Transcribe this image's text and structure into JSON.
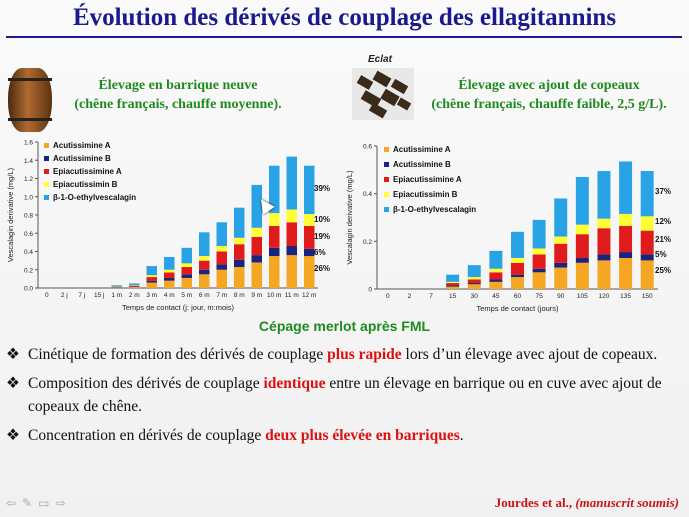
{
  "title": "Évolution des dérivés de couplage des ellagitannins",
  "left_subtitle": [
    "Élevage en barrique neuve",
    "(chêne français, chauffe moyenne)."
  ],
  "right_caption": "Eclat",
  "right_subtitle": [
    "Élevage avec ajout de copeaux",
    "(chêne français, chauffe faible, 2,5 g/L)."
  ],
  "colors": {
    "title": "#1a1a8c",
    "subtitle": "#1f8a1f",
    "highlight": "#dd1111",
    "series": [
      "#f5a623",
      "#1a237e",
      "#e01b1b",
      "#ffff33",
      "#29a3e6"
    ]
  },
  "chart_data": [
    {
      "type": "bar",
      "stacked": true,
      "xlabel": "Temps de contact (j: jour, m:mois)",
      "ylabel": "Vescalagin derivative (mg/L)",
      "ylim": [
        0,
        1.6
      ],
      "yticks": [
        "0.0",
        "0.2",
        "0.4",
        "0.6",
        "0.8",
        "1.0",
        "1.2",
        "1.4",
        "1.6"
      ],
      "categories": [
        "0",
        "2 j",
        "7 j",
        "15 j",
        "1 m",
        "2 m",
        "3 m",
        "4 m",
        "5 m",
        "6 m",
        "7 m",
        "8 m",
        "9 m",
        "10 m",
        "11 m",
        "12 m"
      ],
      "series": [
        {
          "name": "Acutissimine A",
          "values": [
            0,
            0,
            0,
            0,
            0.005,
            0.01,
            0.06,
            0.08,
            0.11,
            0.15,
            0.2,
            0.23,
            0.28,
            0.35,
            0.36,
            0.35
          ]
        },
        {
          "name": "Acutissimine B",
          "values": [
            0,
            0,
            0,
            0,
            0.002,
            0.005,
            0.02,
            0.03,
            0.04,
            0.05,
            0.06,
            0.08,
            0.08,
            0.09,
            0.1,
            0.08
          ]
        },
        {
          "name": "Epiacutissimine A",
          "values": [
            0,
            0,
            0,
            0,
            0.005,
            0.01,
            0.04,
            0.06,
            0.08,
            0.1,
            0.14,
            0.17,
            0.2,
            0.24,
            0.26,
            0.25
          ]
        },
        {
          "name": "Epiacutissimin B",
          "values": [
            0,
            0,
            0,
            0,
            0.003,
            0.005,
            0.02,
            0.03,
            0.04,
            0.05,
            0.06,
            0.07,
            0.1,
            0.14,
            0.14,
            0.13
          ]
        },
        {
          "name": "β-1-O-ethylvescalagin",
          "values": [
            0,
            0,
            0,
            0,
            0.015,
            0.02,
            0.1,
            0.14,
            0.17,
            0.26,
            0.26,
            0.33,
            0.47,
            0.52,
            0.58,
            0.53
          ]
        }
      ],
      "percent_labels": [
        "39%",
        "10%",
        "19%",
        "6%",
        "26%"
      ]
    },
    {
      "type": "bar",
      "stacked": true,
      "xlabel": "Temps de contact (jours)",
      "ylabel": "Vescalagin derivative (mg/L)",
      "ylim": [
        0,
        0.6
      ],
      "yticks": [
        "0",
        "0.2",
        "0.4",
        "0.6"
      ],
      "categories": [
        "0",
        "2",
        "7",
        "15",
        "30",
        "45",
        "60",
        "75",
        "90",
        "105",
        "120",
        "135",
        "150"
      ],
      "series": [
        {
          "name": "Acutissimine A",
          "values": [
            0,
            0,
            0,
            0.01,
            0.02,
            0.03,
            0.05,
            0.07,
            0.09,
            0.11,
            0.12,
            0.13,
            0.12
          ]
        },
        {
          "name": "Acutissimine B",
          "values": [
            0,
            0,
            0,
            0.005,
            0.005,
            0.01,
            0.01,
            0.015,
            0.02,
            0.02,
            0.025,
            0.025,
            0.025
          ]
        },
        {
          "name": "Epiacutissimine A",
          "values": [
            0,
            0,
            0,
            0.01,
            0.015,
            0.03,
            0.05,
            0.06,
            0.08,
            0.1,
            0.11,
            0.11,
            0.1
          ]
        },
        {
          "name": "Epiacutissimin B",
          "values": [
            0,
            0,
            0,
            0.005,
            0.01,
            0.015,
            0.02,
            0.025,
            0.03,
            0.04,
            0.04,
            0.05,
            0.06
          ]
        },
        {
          "name": "β-1-O-ethylvescalagin",
          "values": [
            0,
            0,
            0,
            0.03,
            0.05,
            0.075,
            0.11,
            0.12,
            0.16,
            0.2,
            0.2,
            0.22,
            0.19
          ]
        }
      ],
      "percent_labels": [
        "37%",
        "12%",
        "21%",
        "5%",
        "25%"
      ]
    }
  ],
  "merlot_label": "Cépage merlot après FML",
  "bullets": [
    {
      "before": "Cinétique de formation des dérivés de couplage ",
      "highlight": "plus rapide",
      "after": " lors d’un élevage avec ajout de copeaux."
    },
    {
      "before": "Composition des dérivés de couplage ",
      "highlight": "identique",
      "after": " entre un élevage en barrique ou en cuve avec ajout de copeaux de chêne."
    },
    {
      "before": "Concentration en dérivés de couplage ",
      "highlight": "deux plus élevée en barriques",
      "after": "."
    }
  ],
  "bullet_marker": "❖",
  "reference": {
    "authors": "Jourdes et al., ",
    "note": "(manuscrit soumis)"
  },
  "nav_icons": [
    "back-arrow-icon",
    "pen-icon",
    "slide-icon",
    "forward-arrow-icon"
  ]
}
